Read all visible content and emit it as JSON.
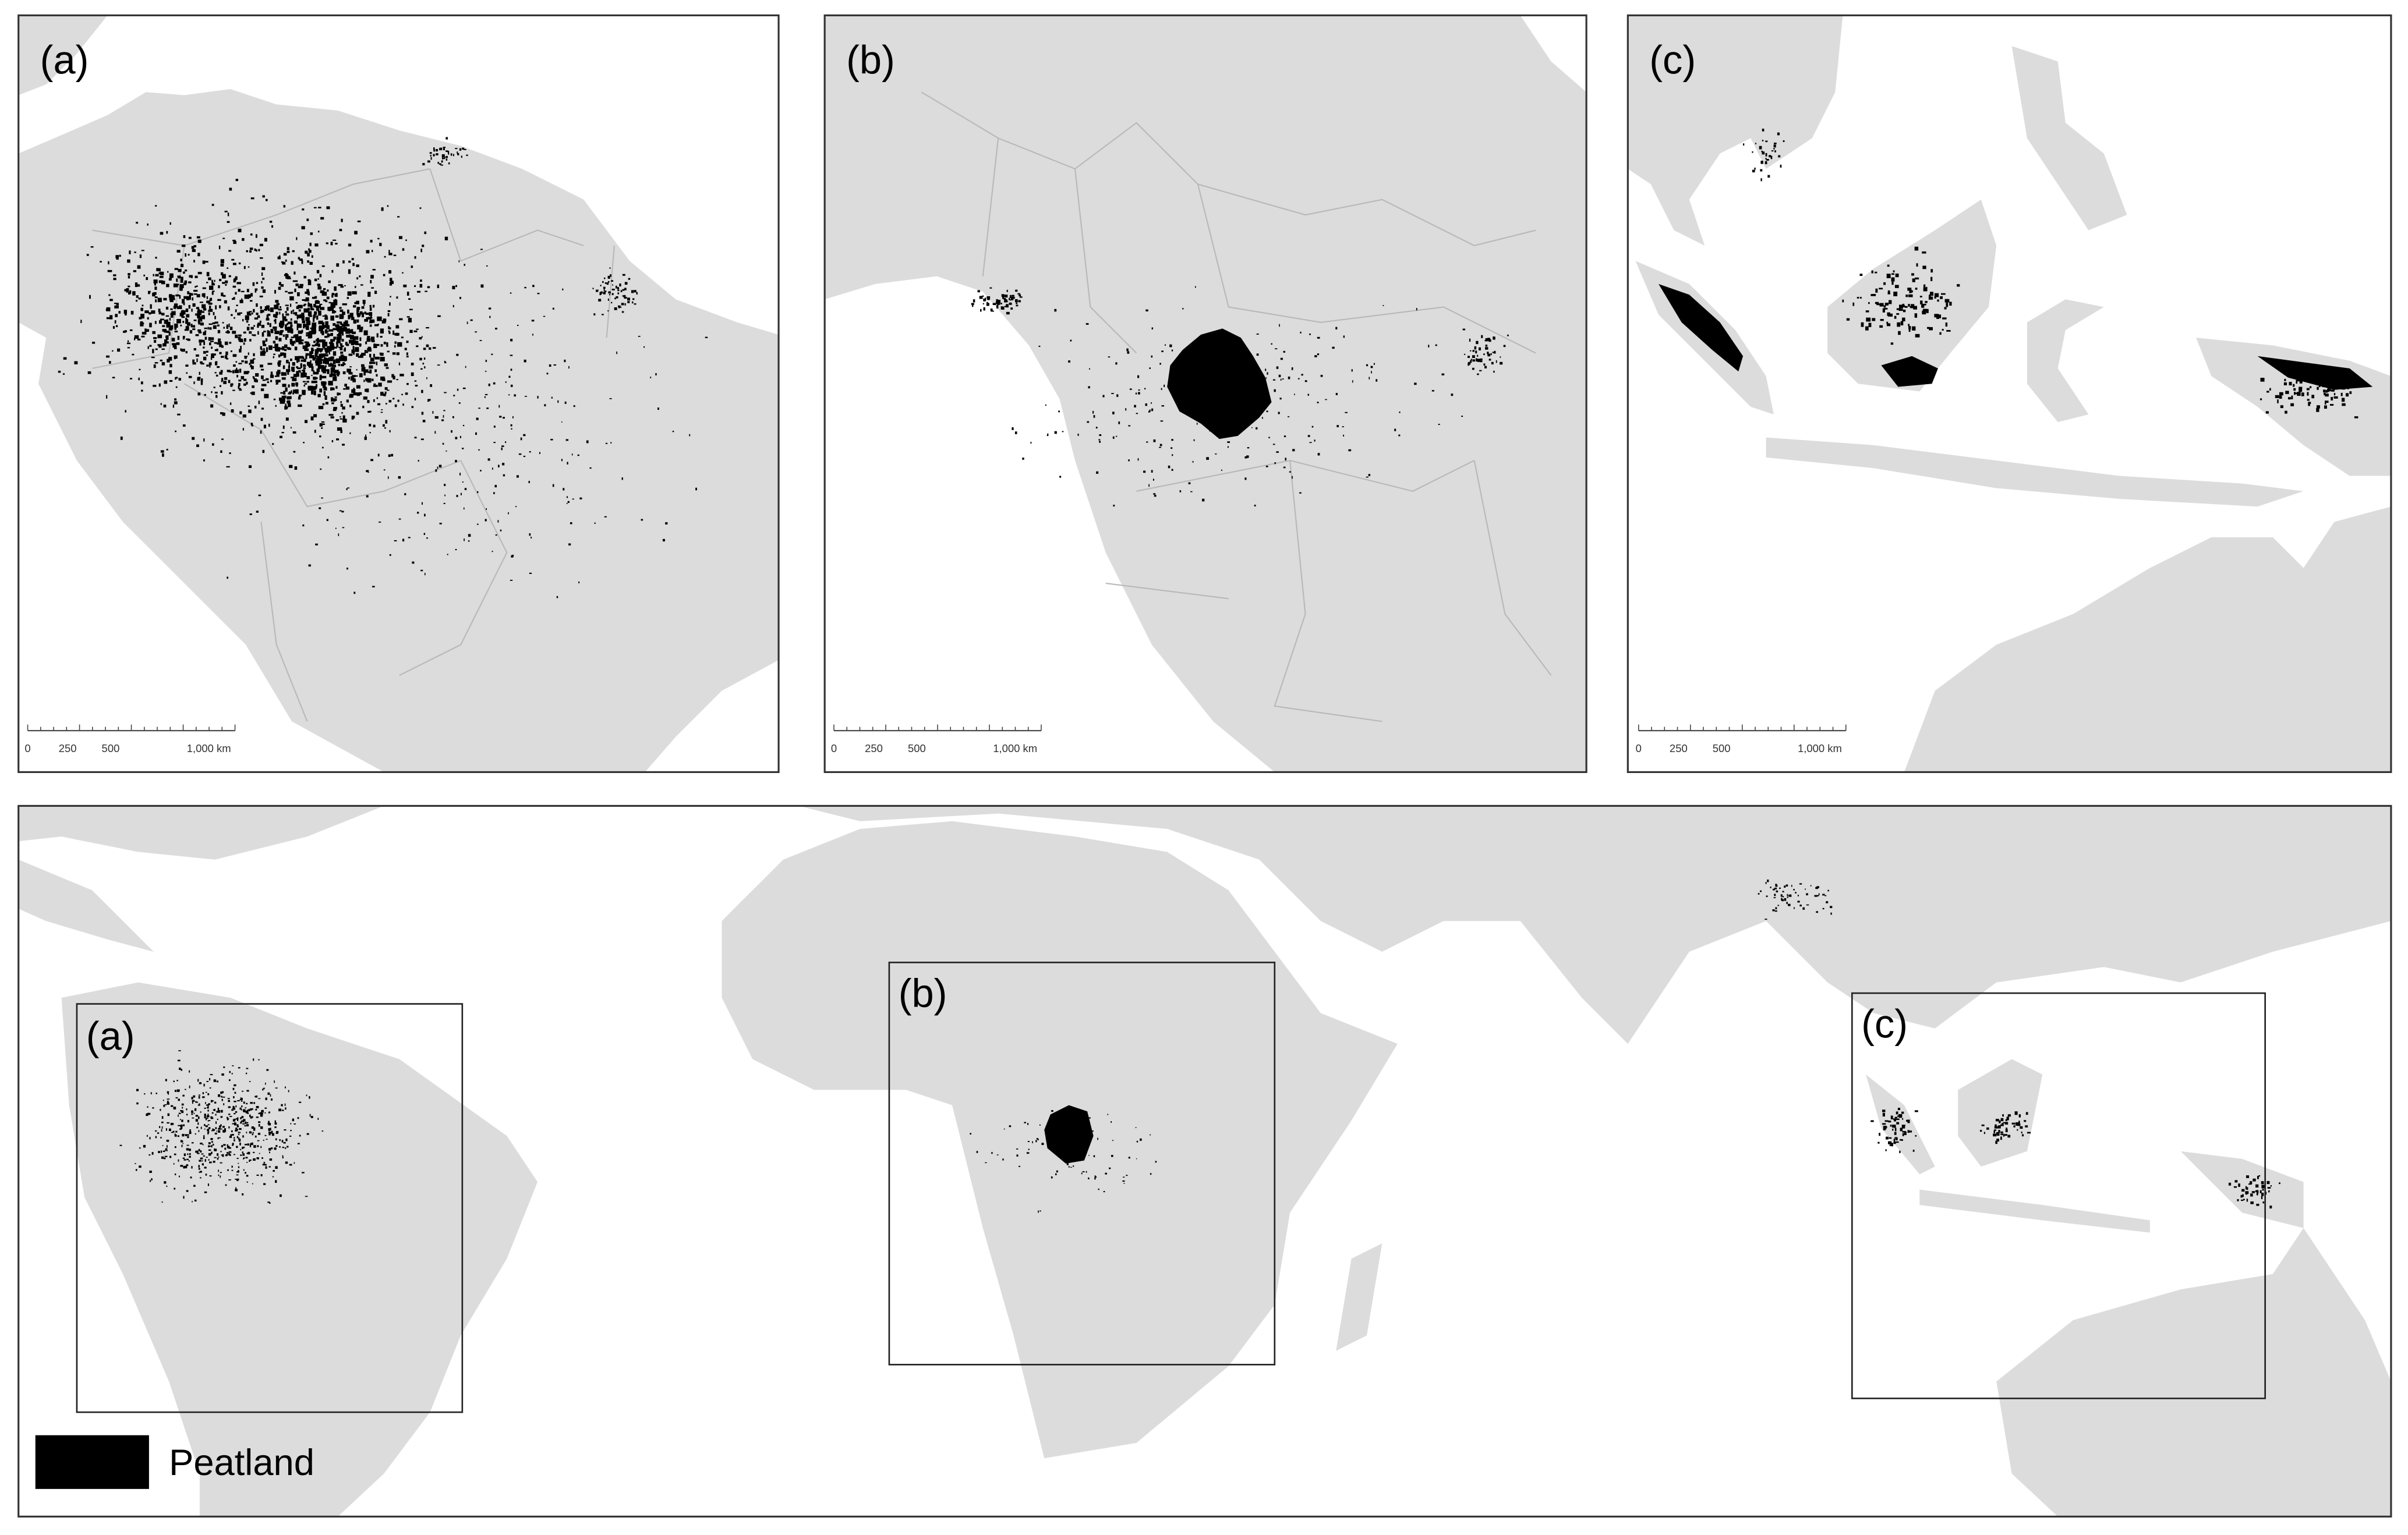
{
  "panels": [
    {
      "label": "(a)",
      "scale_bar": [
        "0",
        "250",
        "500",
        "1,000 km"
      ]
    },
    {
      "label": "(b)",
      "scale_bar": [
        "0",
        "250",
        "500",
        "1,000 km"
      ]
    },
    {
      "label": "(c)",
      "scale_bar": [
        "0",
        "250",
        "500",
        "1,000 km"
      ]
    }
  ],
  "overview": {
    "boxes": [
      {
        "label": "(a)"
      },
      {
        "label": "(b)"
      },
      {
        "label": "(c)"
      }
    ],
    "legend": {
      "label": "Peatland"
    }
  }
}
